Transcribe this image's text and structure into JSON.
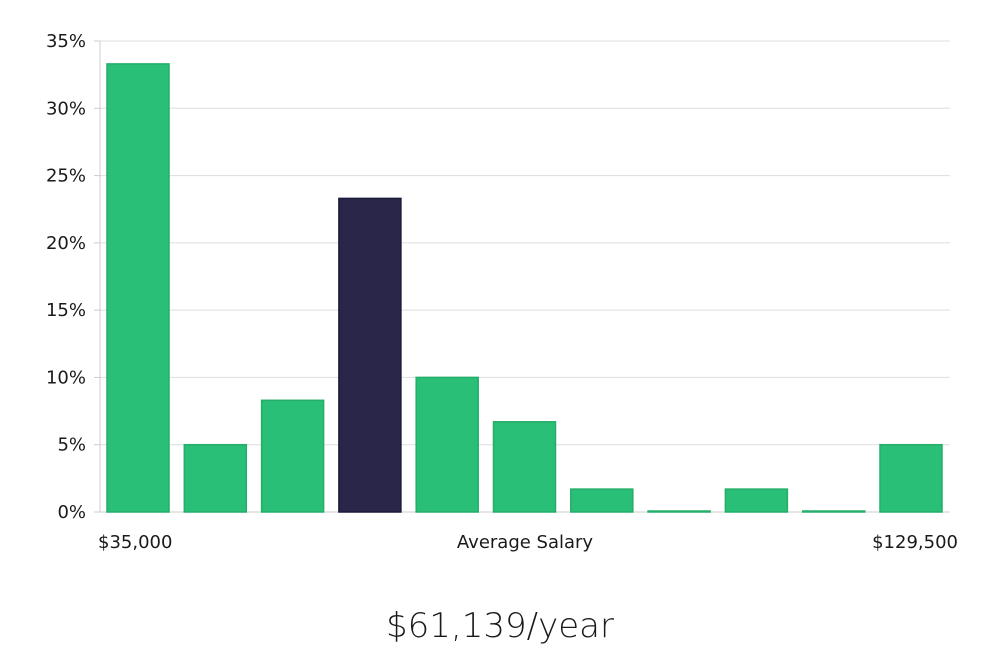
{
  "chart_data": {
    "type": "bar",
    "title": "",
    "xlabel": "Average Salary",
    "ylabel": "",
    "x_range_labels": {
      "min": "$35,000",
      "max": "$129,500"
    },
    "ylim": [
      0,
      35
    ],
    "yticks": [
      0,
      5,
      10,
      15,
      20,
      25,
      30,
      35
    ],
    "ytick_suffix": "%",
    "grid": true,
    "values": [
      33.3,
      5.0,
      8.3,
      23.3,
      10.0,
      6.7,
      1.7,
      0.0,
      1.7,
      0.0,
      5.0
    ],
    "highlight_index": 3,
    "colors": {
      "bar": "#2abf76",
      "highlight": "#29264a",
      "grid": "#dddddd",
      "axis": "#cccccc"
    }
  },
  "summary": {
    "salary": "$61,139/year"
  }
}
